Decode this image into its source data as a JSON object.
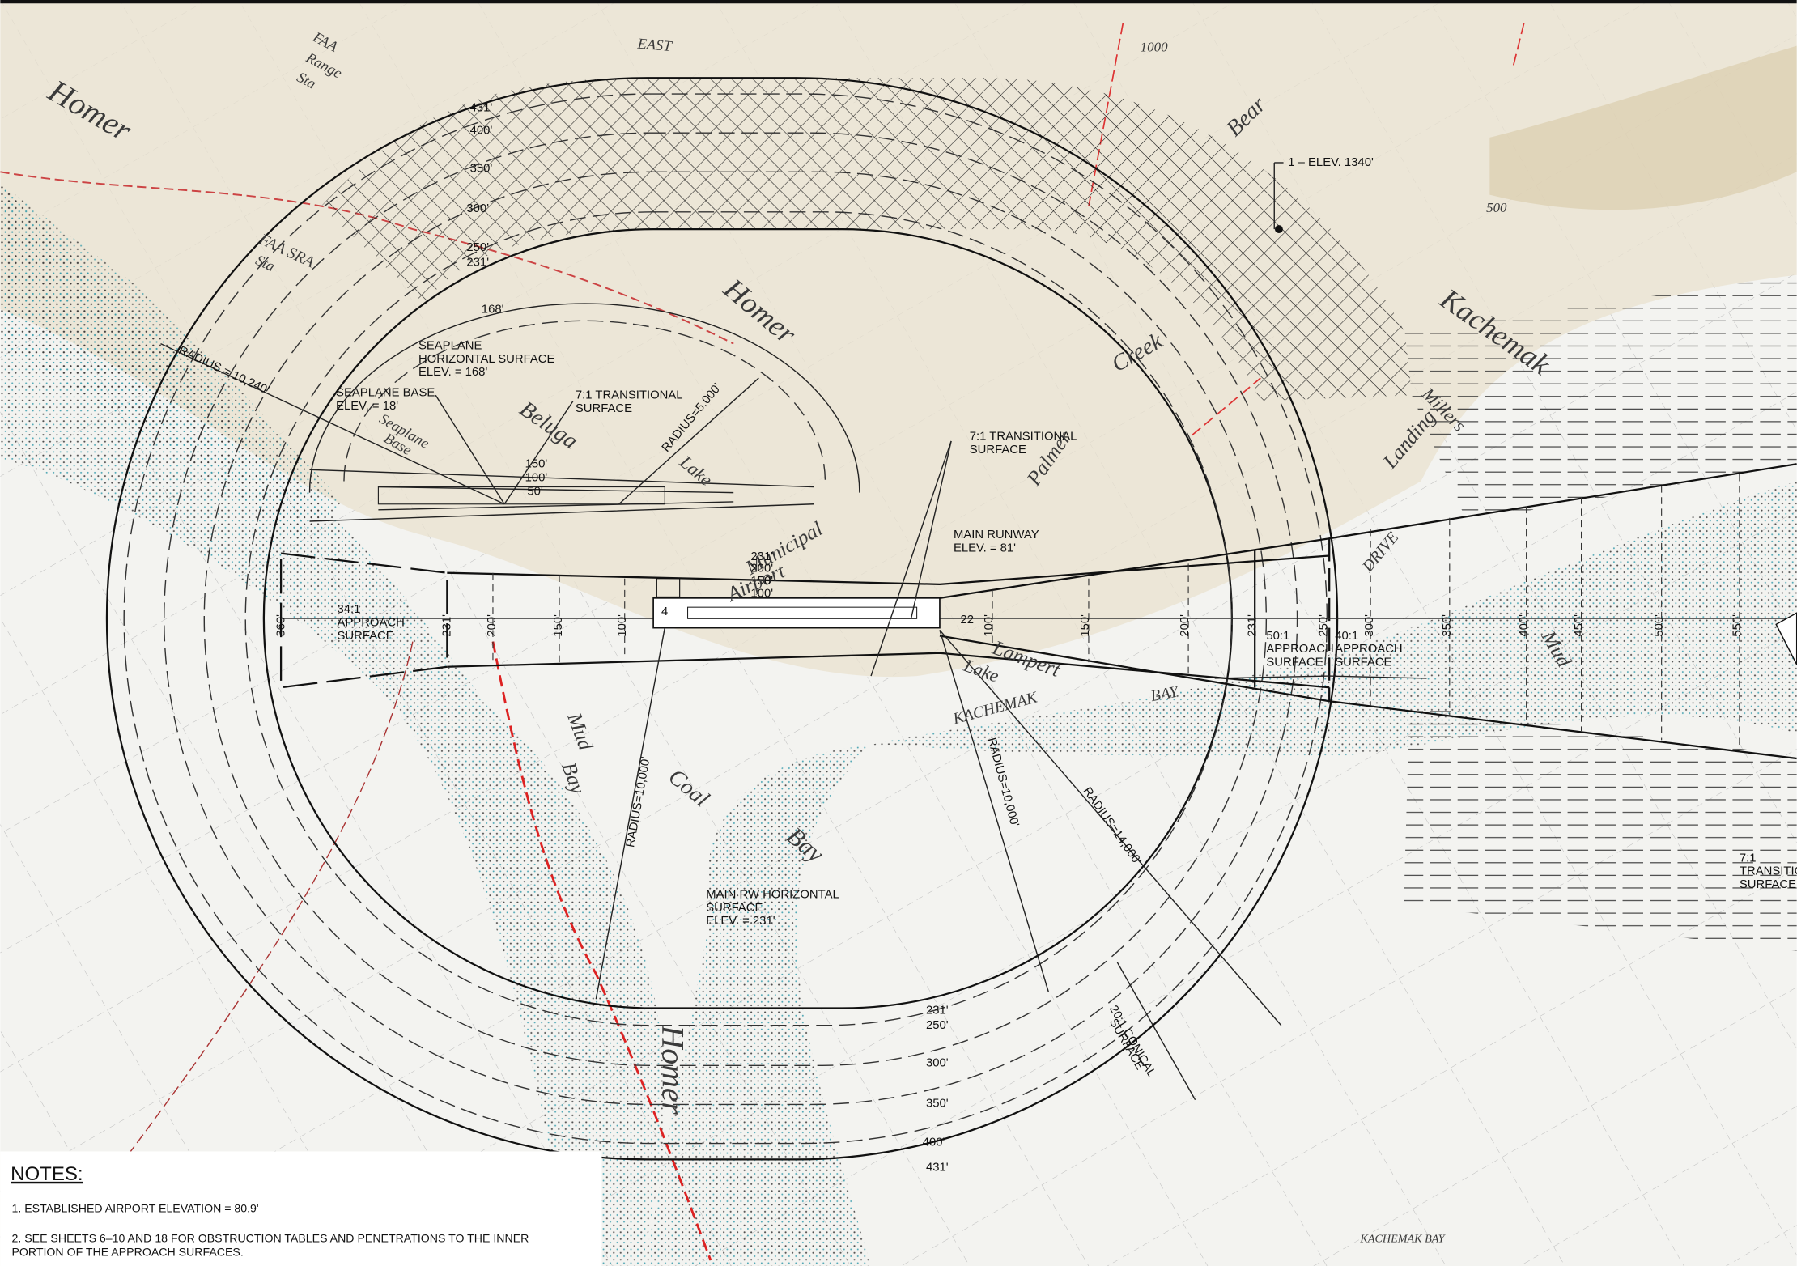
{
  "map_labels": [
    "Homer",
    "FAA",
    "Range",
    "Sta",
    "FAA SRA",
    "Sta",
    "EAST",
    "Bear",
    "Kachemak",
    "Millers",
    "Landing",
    "Homer",
    "Beluga",
    "Lake",
    "Seaplane",
    "Base",
    "Palmer",
    "Creek",
    "Municipal",
    "Airport",
    "Homer",
    "Mud",
    "Bay",
    "Coal",
    "Bay",
    "Lampert",
    "Lake",
    "KACHEMAK",
    "BAY",
    "DRIVE",
    "Mud",
    "1000",
    "500",
    "KACHEMAK BAY"
  ],
  "surface_labels": [
    [
      "1 – ELEV. 1340'"
    ],
    [
      "SEAPLANE",
      "HORIZONTAL SURFACE",
      "ELEV. = 168'"
    ],
    [
      "SEAPLANE BASE",
      "ELEV. = 18'"
    ],
    [
      "7:1 TRANSITIONAL",
      "SURFACE"
    ],
    [
      "RADIUS=5,000'"
    ],
    [
      "RADIUS = 10,240'"
    ],
    [
      "7:1 TRANSITIONAL",
      "SURFACE"
    ],
    [
      "MAIN RUNWAY",
      "ELEV. = 81'"
    ],
    [
      "34:1",
      "APPROACH",
      "SURFACE"
    ],
    [
      "50:1",
      "APPROACH",
      "SURFACE"
    ],
    [
      "40:1",
      "APPROACH",
      "SURFACE"
    ],
    [
      "RADIUS=10,000'"
    ],
    [
      "RADIUS=10,000'"
    ],
    [
      "RADIUS=14,000'"
    ],
    [
      "MAIN RW HORIZONTAL",
      "SURFACE",
      "ELEV. = 231'"
    ],
    [
      "20:1 CONICAL",
      "SURFACE"
    ],
    [
      "7:1",
      "TRANSITIONAL",
      "SURFACE"
    ]
  ],
  "elevations": {
    "left": [
      "431'",
      "400'",
      "350'",
      "300'",
      "250'",
      "231'",
      "168'"
    ],
    "seaplane": [
      "150'",
      "100'",
      "50'"
    ],
    "runway": [
      "231'",
      "200'",
      "150'",
      "100'"
    ],
    "bottom": [
      "231'",
      "250'",
      "300'",
      "350'",
      "400'",
      "431'"
    ],
    "centerline": [
      "360'",
      "231'",
      "200'",
      "150'",
      "100'",
      "100'",
      "150'",
      "200'",
      "231'",
      "250'",
      "300'",
      "350'",
      "400'",
      "450'",
      "500'",
      "550'"
    ],
    "runway_ends": [
      "4",
      "22"
    ]
  },
  "notes": {
    "title": "NOTES:",
    "items": [
      [
        "1. ESTABLISHED AIRPORT ELEVATION = 80.9'"
      ],
      [
        "2. SEE SHEETS 6–10 AND 18 FOR OBSTRUCTION TABLES AND PENETRATIONS TO THE INNER",
        "PORTION OF THE APPROACH SURFACES."
      ]
    ]
  }
}
